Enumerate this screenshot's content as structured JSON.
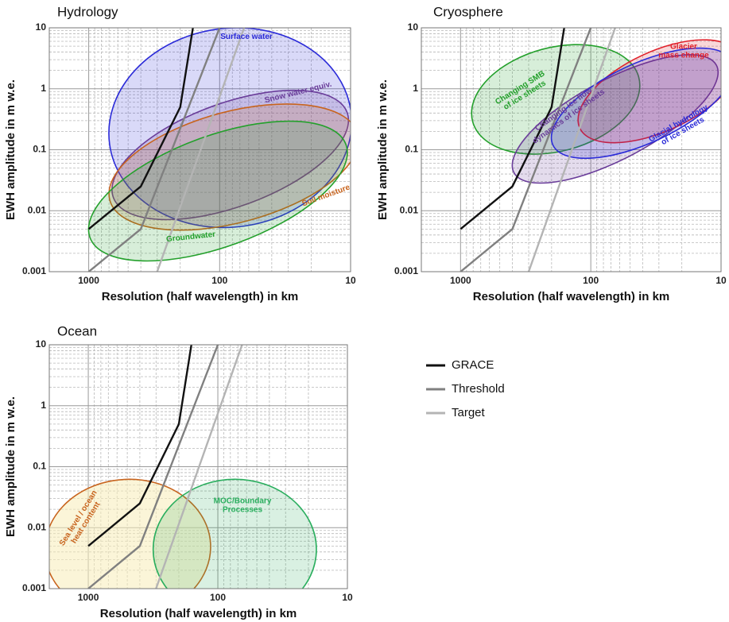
{
  "chart_data": [
    {
      "type": "line",
      "title": "Hydrology",
      "xlabel": "Resolution (half wavelength) in km",
      "ylabel": "EWH amplitude in m w.e.",
      "xscale": "log",
      "yscale": "log",
      "xlim": [
        2000,
        10
      ],
      "ylim": [
        0.001,
        10
      ],
      "xticks": [
        1000,
        100,
        10
      ],
      "yticks": [
        0.001,
        0.01,
        0.1,
        1,
        10
      ],
      "grid": true,
      "series": [
        {
          "name": "GRACE",
          "color": "#111111",
          "x": [
            1000,
            400,
            200,
            160
          ],
          "values": [
            0.005,
            0.025,
            0.5,
            10
          ]
        },
        {
          "name": "Threshold",
          "color": "#808080",
          "x": [
            1000,
            400,
            100
          ],
          "values": [
            0.001,
            0.005,
            10
          ]
        },
        {
          "name": "Target",
          "color": "#b4b4b4",
          "x": [
            300,
            65
          ],
          "values": [
            0.001,
            10
          ]
        }
      ],
      "regions": [
        {
          "label": [
            "Surface water"
          ],
          "color": "#2b2bd8",
          "center": [
            83,
            0.23
          ],
          "radii": [
            0.93,
            1.63
          ],
          "angle": -8
        },
        {
          "label": [
            "Snow water equiv."
          ],
          "color": "#6a3d9a",
          "center": [
            83,
            0.082
          ],
          "radii": [
            0.95,
            0.85
          ],
          "angle": -20
        },
        {
          "label": [
            "Soil moisture"
          ],
          "color": "#c8641e",
          "center": [
            78,
            0.052
          ],
          "radii": [
            0.98,
            0.91
          ],
          "angle": -15
        },
        {
          "label": [
            "Groundwater"
          ],
          "color": "#24a02c",
          "center": [
            103,
            0.021
          ],
          "radii": [
            1.04,
            0.91
          ],
          "angle": -20
        }
      ]
    },
    {
      "type": "line",
      "title": "Cryosphere",
      "xlabel": "Resolution (half wavelength) in km",
      "ylabel": "EWH amplitude in m w.e.",
      "xscale": "log",
      "yscale": "log",
      "xlim": [
        2000,
        10
      ],
      "ylim": [
        0.001,
        10
      ],
      "xticks": [
        1000,
        100,
        10
      ],
      "yticks": [
        0.001,
        0.01,
        0.1,
        1,
        10
      ],
      "grid": true,
      "series": [
        {
          "name": "GRACE",
          "color": "#111111",
          "x": [
            1000,
            400,
            200,
            160
          ],
          "values": [
            0.005,
            0.025,
            0.5,
            10
          ]
        },
        {
          "name": "Threshold",
          "color": "#808080",
          "x": [
            1000,
            400,
            100
          ],
          "values": [
            0.001,
            0.005,
            10
          ]
        },
        {
          "name": "Target",
          "color": "#b4b4b4",
          "x": [
            300,
            65
          ],
          "values": [
            0.001,
            10
          ]
        }
      ],
      "regions": [
        {
          "label": [
            "Changing SMB",
            "of ice sheets"
          ],
          "color": "#24a02c",
          "center": [
            186,
            0.67
          ],
          "radii": [
            0.66,
            0.85
          ],
          "angle": -15
        },
        {
          "label": [
            "Changing ice flow",
            "dynamics of ice sheets"
          ],
          "color": "#6a3d9a",
          "center": [
            65,
            0.32
          ],
          "radii": [
            0.88,
            0.65
          ],
          "angle": -28
        },
        {
          "label": [
            "Glacier",
            "mass change"
          ],
          "color": "#e0202a",
          "center": [
            30,
            0.91
          ],
          "radii": [
            0.67,
            0.65
          ],
          "angle": -25
        },
        {
          "label": [
            "Glacial hydrology",
            "of ice sheets"
          ],
          "color": "#2b2bd8",
          "center": [
            40,
            0.58
          ],
          "radii": [
            0.76,
            0.65
          ],
          "angle": -25
        }
      ]
    },
    {
      "type": "line",
      "title": "Ocean",
      "xlabel": "Resolution (half wavelength) in km",
      "ylabel": "EWH amplitude in m w.e.",
      "xscale": "log",
      "yscale": "log",
      "xlim": [
        2000,
        10
      ],
      "ylim": [
        0.001,
        10
      ],
      "xticks": [
        1000,
        100,
        10
      ],
      "yticks": [
        0.001,
        0.01,
        0.1,
        1,
        10
      ],
      "grid": true,
      "series": [
        {
          "name": "GRACE",
          "color": "#111111",
          "x": [
            1000,
            400,
            200,
            160
          ],
          "values": [
            0.005,
            0.025,
            0.5,
            10
          ]
        },
        {
          "name": "Threshold",
          "color": "#808080",
          "x": [
            1000,
            400,
            100
          ],
          "values": [
            0.001,
            0.005,
            10
          ]
        },
        {
          "name": "Target",
          "color": "#b4b4b4",
          "x": [
            300,
            65
          ],
          "values": [
            0.001,
            10
          ]
        }
      ],
      "regions": [
        {
          "label": [
            "Sea level / ocean",
            "heat content"
          ],
          "color": "#c8641e",
          "fill": "#f8ecb8",
          "center": [
            496,
            0.0046
          ],
          "radii": [
            0.64,
            1.13
          ],
          "angle": -3
        },
        {
          "label": [
            "MOC/Boundary",
            "Processes"
          ],
          "color": "#2aae5e",
          "center": [
            74,
            0.0044
          ],
          "radii": [
            0.63,
            1.15
          ],
          "angle": 0
        }
      ]
    }
  ]
}
